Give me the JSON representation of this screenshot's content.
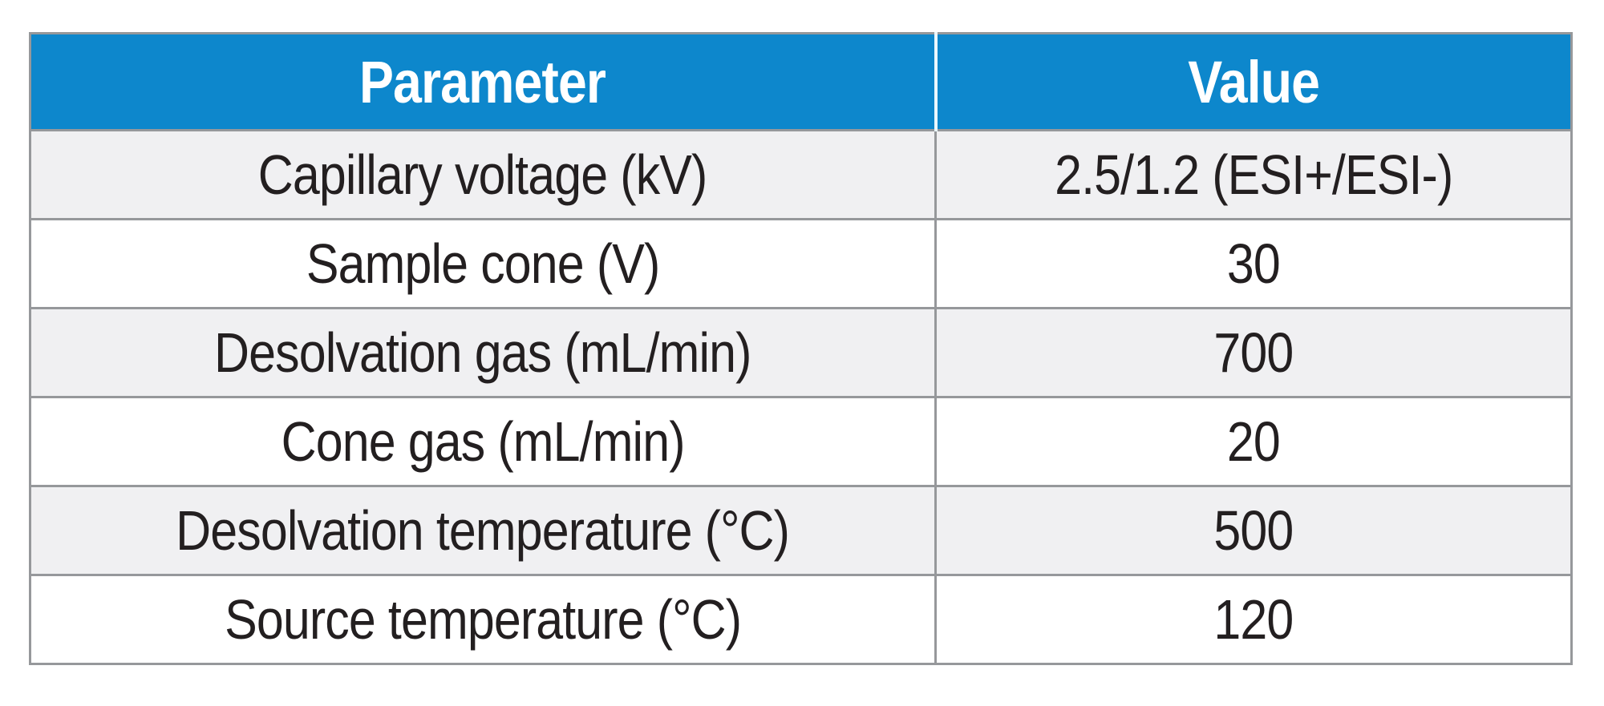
{
  "chart_data": {
    "type": "table",
    "columns": [
      "Parameter",
      "Value"
    ],
    "rows": [
      [
        "Capillary voltage (kV)",
        "2.5/1.2 (ESI+/ESI-)"
      ],
      [
        "Sample cone (V)",
        "30"
      ],
      [
        "Desolvation gas (mL/min)",
        "700"
      ],
      [
        "Cone gas (mL/min)",
        "20"
      ],
      [
        "Desolvation temperature (°C)",
        "500"
      ],
      [
        "Source temperature (°C)",
        "120"
      ]
    ],
    "title": "",
    "layout_hints": {
      "header_position": "top",
      "grid": true,
      "zebra_striping": true
    }
  },
  "table": {
    "headers": {
      "parameter": "Parameter",
      "value": "Value"
    },
    "rows": [
      {
        "parameter": "Capillary voltage (kV)",
        "value": "2.5/1.2 (ESI+/ESI-)"
      },
      {
        "parameter": "Sample cone (V)",
        "value": "30"
      },
      {
        "parameter": "Desolvation gas (mL/min)",
        "value": "700"
      },
      {
        "parameter": "Cone gas (mL/min)",
        "value": "20"
      },
      {
        "parameter": "Desolvation temperature (°C)",
        "value": "500"
      },
      {
        "parameter": "Source temperature (°C)",
        "value": "120"
      }
    ]
  },
  "colors": {
    "header_bg": "#0D87CC",
    "header_text": "#FFFFFF",
    "header_divider": "#EAF7FD",
    "grid_border": "#96989B",
    "row_bg": "#FFFFFF",
    "row_alt_bg": "#F0F0F2",
    "body_text": "#231F20",
    "page_bg": "#FFFFFF"
  }
}
